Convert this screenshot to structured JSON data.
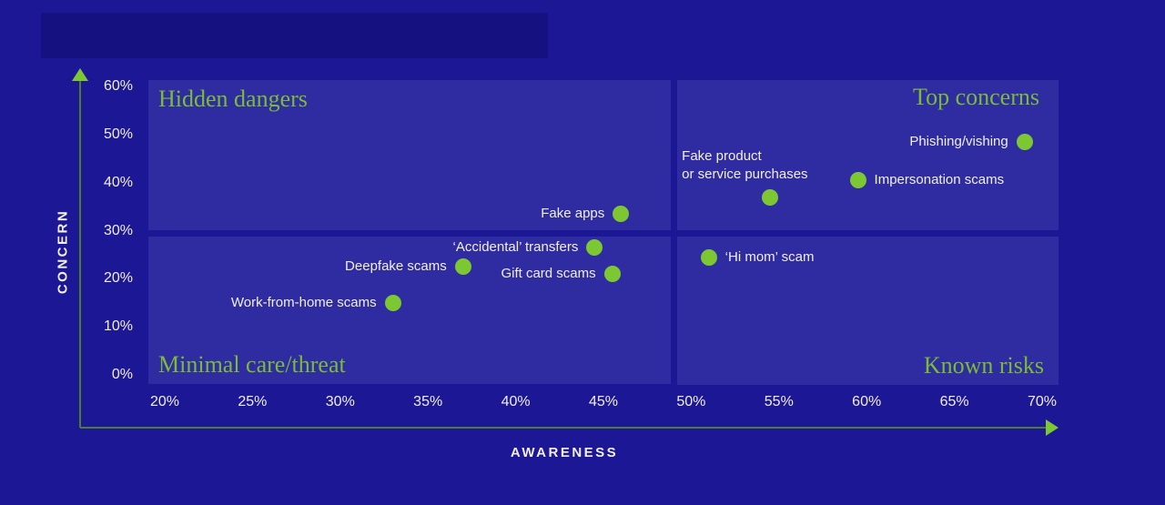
{
  "colors": {
    "background": "#1c1795",
    "quadrant_box": "#2e2ca0",
    "dot_green": "#7dc832",
    "title_green": "#7cbb35",
    "axis_line_green": "#4f7d2f",
    "text_white": "#f2efe8"
  },
  "chart_data": {
    "type": "scatter",
    "title": "",
    "xlabel": "AWARENESS",
    "ylabel": "CONCERN",
    "xlim": [
      20,
      70
    ],
    "ylim": [
      0,
      60
    ],
    "x_ticks": [
      20,
      25,
      30,
      35,
      40,
      45,
      50,
      55,
      60,
      65,
      70
    ],
    "x_tick_labels": [
      "20%",
      "25%",
      "30%",
      "35%",
      "40%",
      "45%",
      "50%",
      "55%",
      "60%",
      "65%",
      "70%"
    ],
    "y_ticks": [
      0,
      10,
      20,
      30,
      40,
      50,
      60
    ],
    "y_tick_labels": [
      "0%",
      "10%",
      "20%",
      "30%",
      "40%",
      "50%",
      "60%"
    ],
    "grid": false,
    "legend": "none",
    "quadrant_split": {
      "awareness": 49,
      "concern": 30
    },
    "quadrants": {
      "top_left": "Hidden dangers",
      "top_right": "Top concerns",
      "bottom_left": "Minimal care/threat",
      "bottom_right": "Known risks"
    },
    "points": [
      {
        "label": "Fake apps",
        "awareness": 46,
        "concern": 33.5,
        "label_side": "left"
      },
      {
        "label": "‘Accidental’ transfers",
        "awareness": 44.5,
        "concern": 26.5,
        "label_side": "left"
      },
      {
        "label": "Deepfake scams",
        "awareness": 37,
        "concern": 22.5,
        "label_side": "left"
      },
      {
        "label": "Gift card scams",
        "awareness": 45.5,
        "concern": 21,
        "label_side": "left"
      },
      {
        "label": "Work-from-home scams",
        "awareness": 33,
        "concern": 15,
        "label_side": "left"
      },
      {
        "label": "Fake product\nor service purchases",
        "awareness": 54.5,
        "concern": 37,
        "label_side": "above"
      },
      {
        "label": "Impersonation scams",
        "awareness": 59.5,
        "concern": 40.5,
        "label_side": "right"
      },
      {
        "label": "Phishing/vishing",
        "awareness": 69,
        "concern": 48.5,
        "label_side": "left"
      },
      {
        "label": "‘Hi mom’ scam",
        "awareness": 51,
        "concern": 24.5,
        "label_side": "right"
      }
    ]
  }
}
